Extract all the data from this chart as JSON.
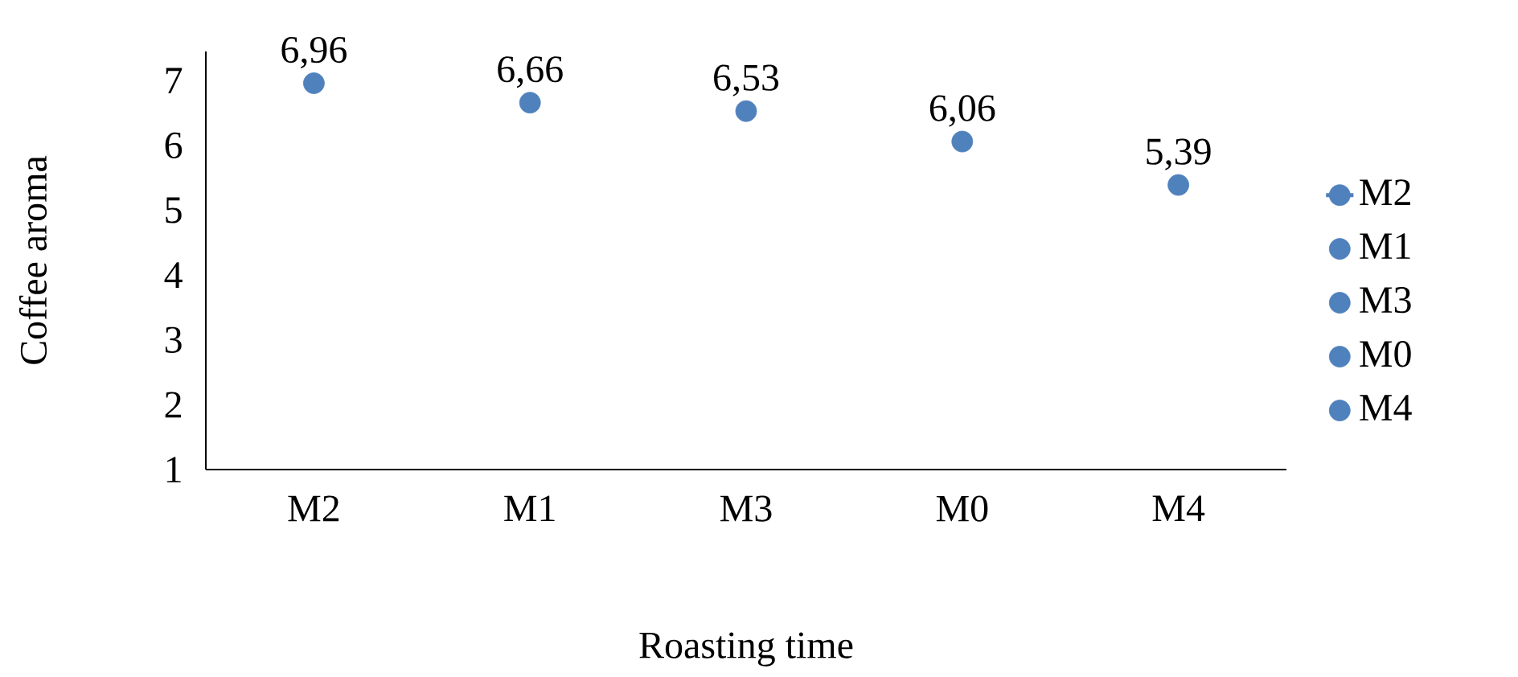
{
  "chart_data": {
    "type": "scatter",
    "xlabel": "Roasting time",
    "ylabel": "Coffee aroma",
    "categories": [
      "M2",
      "M1",
      "M3",
      "M0",
      "M4"
    ],
    "series": [
      {
        "name": "M2",
        "type": "line",
        "color": "#4f81bd",
        "values": [
          6.96,
          null,
          null,
          null,
          null
        ],
        "value_labels": [
          "6,96",
          null,
          null,
          null,
          null
        ]
      },
      {
        "name": "M1",
        "color": "#4f81bd",
        "values": [
          null,
          6.66,
          null,
          null,
          null
        ],
        "value_labels": [
          null,
          "6,66",
          null,
          null,
          null
        ]
      },
      {
        "name": "M3",
        "color": "#4f81bd",
        "values": [
          null,
          null,
          6.53,
          null,
          null
        ],
        "value_labels": [
          null,
          null,
          "6,53",
          null,
          null
        ]
      },
      {
        "name": "M0",
        "color": "#4f81bd",
        "values": [
          null,
          null,
          null,
          6.06,
          null
        ],
        "value_labels": [
          null,
          null,
          null,
          "6,06",
          null
        ]
      },
      {
        "name": "M4",
        "color": "#4f81bd",
        "values": [
          null,
          null,
          null,
          null,
          5.39
        ],
        "value_labels": [
          null,
          null,
          null,
          null,
          "5,39"
        ]
      }
    ],
    "ylim": [
      1,
      7.45
    ],
    "yticks": [
      1,
      2,
      3,
      4,
      5,
      6,
      7
    ],
    "marker": "circle",
    "legend": "right",
    "grid": false
  }
}
